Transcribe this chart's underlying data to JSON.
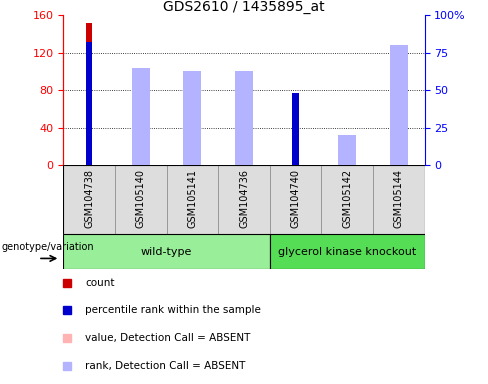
{
  "title": "GDS2610 / 1435895_at",
  "samples": [
    "GSM104738",
    "GSM105140",
    "GSM105141",
    "GSM104736",
    "GSM104740",
    "GSM105142",
    "GSM105144"
  ],
  "count_values": [
    152,
    0,
    0,
    0,
    74,
    0,
    0
  ],
  "percentile_values": [
    82,
    0,
    0,
    0,
    48,
    0,
    0
  ],
  "absent_value_values": [
    0,
    98,
    88,
    86,
    0,
    20,
    128
  ],
  "absent_rank_values": [
    0,
    65,
    63,
    63,
    0,
    20,
    80
  ],
  "ylim_left": [
    0,
    160
  ],
  "ylim_right": [
    0,
    100
  ],
  "left_ticks": [
    0,
    40,
    80,
    120,
    160
  ],
  "right_ticks": [
    0,
    25,
    50,
    75,
    100
  ],
  "right_tick_labels": [
    "0",
    "25",
    "50",
    "75",
    "100%"
  ],
  "color_count": "#cc0000",
  "color_percentile": "#0000cc",
  "color_absent_value": "#ffb3b3",
  "color_absent_rank": "#b3b3ff",
  "wt_color": "#99ee99",
  "gk_color": "#55dd55",
  "sample_bg_color": "#dddddd",
  "wt_samples_count": 4,
  "gk_samples_count": 3,
  "legend_labels": [
    "count",
    "percentile rank within the sample",
    "value, Detection Call = ABSENT",
    "rank, Detection Call = ABSENT"
  ],
  "legend_colors": [
    "#cc0000",
    "#0000cc",
    "#ffb3b3",
    "#b3b3ff"
  ],
  "narrow_bar_width": 0.12,
  "wide_bar_width": 0.35
}
